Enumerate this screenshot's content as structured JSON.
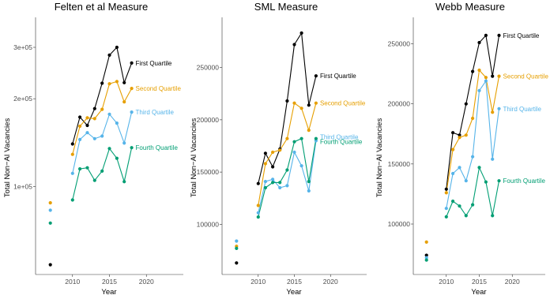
{
  "chart_data": [
    {
      "type": "line",
      "title": "Felten et al Measure",
      "xlabel": "Year",
      "ylabel": "Total Non−AI Vacancies",
      "y_scale": "log",
      "xlim": [
        2005,
        2025
      ],
      "ylim": [
        50000,
        380000
      ],
      "x_ticks": [
        2010,
        2015,
        2020
      ],
      "y_ticks": [
        100000,
        200000,
        300000
      ],
      "y_tick_labels": [
        "1e+05",
        "2e+05",
        "3e+05"
      ],
      "grid": false,
      "legend": "direct labels at line ends",
      "series": [
        {
          "name": "First Quartile",
          "color": "#000000",
          "points": [
            [
              2007,
              54000
            ],
            [
              2010,
              140000
            ],
            [
              2011,
              173000
            ],
            [
              2012,
              162000
            ],
            [
              2013,
              185000
            ],
            [
              2014,
              226000
            ],
            [
              2015,
              282000
            ],
            [
              2016,
              300000
            ],
            [
              2017,
              227000
            ],
            [
              2018,
              265000
            ]
          ]
        },
        {
          "name": "Second Quartile",
          "color": "#E69F00",
          "points": [
            [
              2007,
              88000
            ],
            [
              2010,
              129000
            ],
            [
              2011,
              161000
            ],
            [
              2012,
              172000
            ],
            [
              2013,
              171000
            ],
            [
              2014,
              184000
            ],
            [
              2015,
              225000
            ],
            [
              2016,
              229000
            ],
            [
              2017,
              195000
            ],
            [
              2018,
              217000
            ]
          ]
        },
        {
          "name": "Third Quartile",
          "color": "#56B4E9",
          "points": [
            [
              2007,
              83000
            ],
            [
              2010,
              111000
            ],
            [
              2011,
              145000
            ],
            [
              2012,
              153000
            ],
            [
              2013,
              146000
            ],
            [
              2014,
              149000
            ],
            [
              2015,
              177000
            ],
            [
              2016,
              165000
            ],
            [
              2017,
              141000
            ],
            [
              2018,
              180000
            ]
          ]
        },
        {
          "name": "Fourth Quartile",
          "color": "#009E73",
          "points": [
            [
              2007,
              75000
            ],
            [
              2010,
              90000
            ],
            [
              2011,
              115000
            ],
            [
              2012,
              116000
            ],
            [
              2013,
              105000
            ],
            [
              2014,
              113000
            ],
            [
              2015,
              135000
            ],
            [
              2016,
              125000
            ],
            [
              2017,
              104000
            ],
            [
              2018,
              136000
            ]
          ]
        }
      ]
    },
    {
      "type": "line",
      "title": "SML Measure",
      "xlabel": "Year",
      "ylabel": "Total Non−AI Vacancies",
      "xlim": [
        2005,
        2025
      ],
      "ylim": [
        52000,
        298000
      ],
      "x_ticks": [
        2010,
        2015,
        2020
      ],
      "y_ticks": [
        100000,
        150000,
        200000,
        250000
      ],
      "y_tick_labels": [
        "100000",
        "150000",
        "200000",
        "250000"
      ],
      "grid": false,
      "legend": "direct labels at line ends",
      "series": [
        {
          "name": "First Quartile",
          "color": "#000000",
          "points": [
            [
              2007,
              63000
            ],
            [
              2010,
              139000
            ],
            [
              2011,
              168000
            ],
            [
              2012,
              155000
            ],
            [
              2013,
              172000
            ],
            [
              2014,
              218000
            ],
            [
              2015,
              272000
            ],
            [
              2016,
              283000
            ],
            [
              2017,
              214000
            ],
            [
              2018,
              242000
            ]
          ]
        },
        {
          "name": "Second Quartile",
          "color": "#E69F00",
          "points": [
            [
              2007,
              79000
            ],
            [
              2010,
              118000
            ],
            [
              2011,
              158000
            ],
            [
              2012,
              169000
            ],
            [
              2013,
              171000
            ],
            [
              2014,
              182000
            ],
            [
              2015,
              216000
            ],
            [
              2016,
              211000
            ],
            [
              2017,
              190000
            ],
            [
              2018,
              216000
            ]
          ]
        },
        {
          "name": "Third Quartile",
          "color": "#56B4E9",
          "points": [
            [
              2007,
              84000
            ],
            [
              2010,
              111000
            ],
            [
              2011,
              141000
            ],
            [
              2012,
              143000
            ],
            [
              2013,
              135000
            ],
            [
              2014,
              137000
            ],
            [
              2015,
              169000
            ],
            [
              2016,
              156000
            ],
            [
              2017,
              132000
            ],
            [
              2018,
              180000
            ]
          ]
        },
        {
          "name": "Fourth Quartile",
          "color": "#009E73",
          "points": [
            [
              2007,
              77000
            ],
            [
              2010,
              107000
            ],
            [
              2011,
              135000
            ],
            [
              2012,
              140000
            ],
            [
              2013,
              140000
            ],
            [
              2014,
              152000
            ],
            [
              2015,
              179000
            ],
            [
              2016,
              182000
            ],
            [
              2017,
              141000
            ],
            [
              2018,
              182000
            ]
          ]
        }
      ]
    },
    {
      "type": "line",
      "title": "Webb Measure",
      "xlabel": "Year",
      "ylabel": "Total Non−AI Vacancies",
      "xlim": [
        2005,
        2025
      ],
      "ylim": [
        58000,
        272000
      ],
      "x_ticks": [
        2010,
        2015,
        2020
      ],
      "y_ticks": [
        100000,
        150000,
        200000,
        250000
      ],
      "y_tick_labels": [
        "100000",
        "150000",
        "200000",
        "250000"
      ],
      "grid": false,
      "legend": "direct labels at line ends",
      "series": [
        {
          "name": "First Quartile",
          "color": "#000000",
          "points": [
            [
              2007,
              74000
            ],
            [
              2010,
              129000
            ],
            [
              2011,
              176000
            ],
            [
              2012,
              174000
            ],
            [
              2013,
              200000
            ],
            [
              2014,
              227000
            ],
            [
              2015,
              251000
            ],
            [
              2016,
              257000
            ],
            [
              2017,
              223000
            ],
            [
              2018,
              257000
            ]
          ]
        },
        {
          "name": "Second Quartile",
          "color": "#E69F00",
          "points": [
            [
              2007,
              85000
            ],
            [
              2010,
              126000
            ],
            [
              2011,
              162000
            ],
            [
              2012,
              172000
            ],
            [
              2013,
              174000
            ],
            [
              2014,
              188000
            ],
            [
              2015,
              228000
            ],
            [
              2016,
              222000
            ],
            [
              2017,
              193000
            ],
            [
              2018,
              223000
            ]
          ]
        },
        {
          "name": "Third Quartile",
          "color": "#56B4E9",
          "points": [
            [
              2007,
              72000
            ],
            [
              2010,
              113000
            ],
            [
              2011,
              142000
            ],
            [
              2012,
              147000
            ],
            [
              2013,
              136000
            ],
            [
              2014,
              156000
            ],
            [
              2015,
              211000
            ],
            [
              2016,
              219000
            ],
            [
              2017,
              154000
            ],
            [
              2018,
              196000
            ]
          ]
        },
        {
          "name": "Fourth Quartile",
          "color": "#009E73",
          "points": [
            [
              2007,
              70000
            ],
            [
              2010,
              106000
            ],
            [
              2011,
              119000
            ],
            [
              2012,
              115000
            ],
            [
              2013,
              107000
            ],
            [
              2014,
              116000
            ],
            [
              2015,
              147000
            ],
            [
              2016,
              135000
            ],
            [
              2017,
              107000
            ],
            [
              2018,
              136000
            ]
          ]
        }
      ]
    }
  ]
}
